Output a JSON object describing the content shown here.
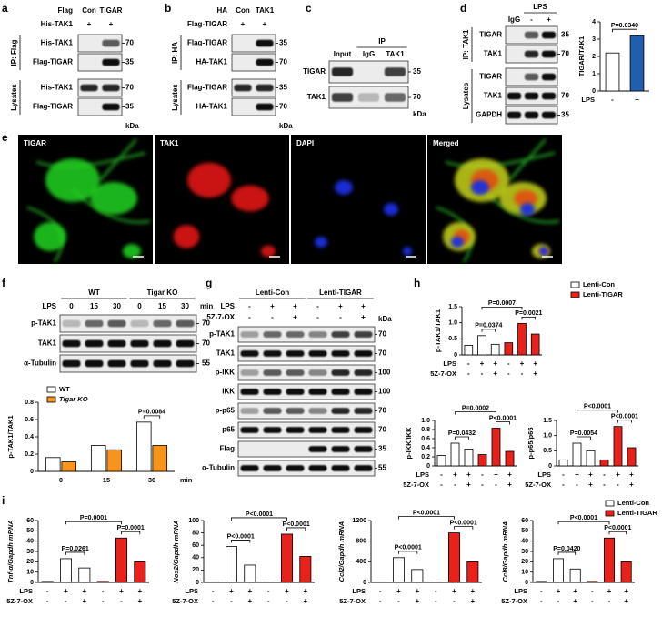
{
  "a": {
    "letter": "a",
    "top": [
      {
        "label": "Flag",
        "cells": [
          "Con",
          "TIGAR"
        ]
      },
      {
        "label": "His-TAK1",
        "cells": [
          "+",
          "+"
        ]
      }
    ],
    "groups": [
      {
        "label": "IP: Flag",
        "rows": [
          {
            "name": "His-TAK1",
            "kda": 70
          },
          {
            "name": "Flag-TIGAR",
            "kda": 35
          }
        ]
      },
      {
        "label": "Lysates",
        "rows": [
          {
            "name": "His-TAK1",
            "kda": 70
          },
          {
            "name": "Flag-TIGAR",
            "kda": 35
          }
        ]
      }
    ],
    "unit": "kDa"
  },
  "b": {
    "letter": "b",
    "top": [
      {
        "label": "HA",
        "cells": [
          "Con",
          "TAK1"
        ]
      },
      {
        "label": "Flag-TIGAR",
        "cells": [
          "+",
          "+"
        ]
      }
    ],
    "groups": [
      {
        "label": "IP: HA",
        "rows": [
          {
            "name": "Flag-TIGAR",
            "kda": 35
          },
          {
            "name": "HA-TAK1",
            "kda": 70
          }
        ]
      },
      {
        "label": "Lysates",
        "rows": [
          {
            "name": "Flag-TIGAR",
            "kda": 35
          },
          {
            "name": "HA-TAK1",
            "kda": 70
          }
        ]
      }
    ],
    "unit": "kDa"
  },
  "c": {
    "letter": "c",
    "spans": [
      {
        "text": "IP"
      }
    ],
    "top": [
      {
        "cells": [
          "Input",
          "IgG",
          "TAK1"
        ]
      }
    ],
    "groups": [
      {
        "rows": [
          {
            "name": "TIGAR",
            "kda": 35
          },
          {
            "name": "TAK1",
            "kda": 70
          }
        ]
      }
    ],
    "unit": "kDa"
  },
  "d": {
    "blot": {
      "letter": "d",
      "spans": [
        {
          "text": "LPS"
        }
      ],
      "top": [
        {
          "cells": [
            "IgG",
            "-",
            "+"
          ]
        }
      ],
      "groups": [
        {
          "label": "IP: TAK1",
          "rows": [
            {
              "name": "TIGAR",
              "kda": 35
            },
            {
              "name": "TAK1",
              "kda": 70
            }
          ]
        },
        {
          "label": "Lysates",
          "rows": [
            {
              "name": "TIGAR"
            },
            {
              "name": "TAK1",
              "kda": 70
            },
            {
              "name": "GAPDH",
              "kda": 35
            }
          ]
        }
      ]
    },
    "chart": {
      "type": "bar",
      "ylabel": "TIGAR/TAK1",
      "ylim": [
        0,
        4
      ],
      "yticks": [
        0,
        1,
        2,
        3,
        4
      ],
      "values": [
        2.2,
        3.2
      ],
      "colors": [
        "#ffffff",
        "#1f5fae"
      ],
      "conditions": [
        {
          "name": "LPS",
          "marks": [
            "-",
            "+"
          ]
        }
      ],
      "annotations": [
        "P=0.0340"
      ]
    }
  },
  "e": {
    "letter": "e",
    "images": [
      "TIGAR",
      "TAK1",
      "DAPI",
      "Merged"
    ]
  },
  "f": {
    "blot": {
      "letter": "f",
      "spans": [
        {
          "text": "WT"
        },
        {
          "text": "Tigar KO"
        }
      ],
      "top": [
        {
          "label": "LPS",
          "cells": [
            0,
            15,
            30,
            0,
            15,
            30
          ],
          "suffix": "min"
        }
      ],
      "groups": [
        {
          "rows": [
            {
              "name": "p-TAK1",
              "kda": 70
            },
            {
              "name": "TAK1",
              "kda": 70
            },
            {
              "name": "α-Tubulin",
              "kda": 55
            }
          ]
        }
      ]
    },
    "chart": {
      "type": "bar",
      "ylabel": "p-TAK1/TAK1",
      "ylim": [
        0,
        0.8
      ],
      "yticks": [
        0,
        0.2,
        0.4,
        0.6,
        0.8
      ],
      "categories": [
        0,
        15,
        30
      ],
      "xlabel": "min",
      "series": [
        {
          "name": "WT",
          "color": "#ffffff",
          "values": [
            0.16,
            0.3,
            0.57
          ]
        },
        {
          "name": "Tigar KO",
          "color": "#f7941d",
          "values": [
            0.11,
            0.25,
            0.3
          ]
        }
      ],
      "annotations": [
        "P=0.0084"
      ]
    }
  },
  "g": {
    "letter": "g",
    "spans": [
      {
        "text": "Lenti-Con"
      },
      {
        "text": "Lenti-TIGAR"
      }
    ],
    "top": [
      {
        "label": "LPS",
        "cells": [
          "-",
          "+",
          "+",
          "-",
          "+",
          "+"
        ]
      },
      {
        "label": "5Z-7-OX",
        "cells": [
          "-",
          "-",
          "+",
          "-",
          "-",
          "+"
        ]
      }
    ],
    "groups": [
      {
        "rows": [
          {
            "name": "p-TAK1",
            "kda": 70
          },
          {
            "name": "TAK1",
            "kda": 70
          },
          {
            "name": "p-IKK",
            "kda": 100
          },
          {
            "name": "IKK",
            "kda": 100
          },
          {
            "name": "p-p65",
            "kda": 70
          },
          {
            "name": "p65",
            "kda": 70
          },
          {
            "name": "Flag",
            "kda": 35
          },
          {
            "name": "α-Tubulin",
            "kda": 55
          }
        ]
      }
    ],
    "unit": "kDa"
  },
  "h": {
    "letter": "h",
    "charts": [
      {
        "type": "bar",
        "ylabel": "p-TAK1/TAK1",
        "ylim": [
          0,
          1.5
        ],
        "yticks": [
          0,
          0.5,
          {
            "value": 1,
            "label": "1.0"
          },
          1.5
        ],
        "series": [
          {
            "name": "Lenti-Con",
            "color": "#ffffff",
            "values": [
              0.3,
              0.6,
              0.33
            ]
          },
          {
            "name": "Lenti-TIGAR",
            "color": "#e8211b",
            "values": [
              0.38,
              0.98,
              0.65
            ]
          }
        ],
        "conditions": [
          {
            "name": "LPS",
            "marks": [
              "-",
              "+",
              "+",
              "-",
              "+",
              "+"
            ]
          },
          {
            "name": "5Z-7-OX",
            "marks": [
              "-",
              "-",
              "+",
              "-",
              "-",
              "+"
            ]
          }
        ],
        "annotations": [
          "P=0.0374",
          "P=0.0007",
          "P=0.0021"
        ]
      },
      {
        "type": "bar",
        "ylabel": "p-IKK/IKK",
        "ylim": [
          0,
          1
        ],
        "yticks": [
          0,
          0.2,
          0.4,
          0.6,
          0.8,
          {
            "value": 1,
            "label": "1.0"
          }
        ],
        "series": [
          {
            "name": "Lenti-Con",
            "color": "#ffffff",
            "values": [
              0.23,
              0.5,
              0.37
            ]
          },
          {
            "name": "Lenti-TIGAR",
            "color": "#e8211b",
            "values": [
              0.25,
              0.83,
              0.32
            ]
          }
        ],
        "conditions": [
          {
            "name": "LPS",
            "marks": [
              "-",
              "+",
              "+",
              "-",
              "+",
              "+"
            ]
          },
          {
            "name": "5Z-7-OX",
            "marks": [
              "-",
              "-",
              "+",
              "-",
              "-",
              "+"
            ]
          }
        ],
        "annotations": [
          "P=0.0432",
          "P=0.0002",
          "P<0.0001"
        ]
      },
      {
        "type": "bar",
        "ylabel": "p-p65/p65",
        "ylim": [
          0,
          1.5
        ],
        "yticks": [
          0,
          0.5,
          {
            "value": 1,
            "label": "1.0"
          },
          1.5
        ],
        "series": [
          {
            "name": "Lenti-Con",
            "color": "#ffffff",
            "values": [
              0.2,
              0.75,
              0.5
            ]
          },
          {
            "name": "Lenti-TIGAR",
            "color": "#e8211b",
            "values": [
              0.2,
              1.3,
              0.6
            ]
          }
        ],
        "conditions": [
          {
            "name": "LPS",
            "marks": [
              "-",
              "+",
              "+",
              "-",
              "+",
              "+"
            ]
          },
          {
            "name": "5Z-7-OX",
            "marks": [
              "-",
              "-",
              "+",
              "-",
              "-",
              "+"
            ]
          }
        ],
        "annotations": [
          "P=0.0054",
          "P<0.0001",
          "P<0.0001"
        ]
      }
    ]
  },
  "i": {
    "letter": "i",
    "charts": [
      {
        "type": "bar",
        "ylabel": "Tnf-α/Gapdh mRNA",
        "ylim": [
          0,
          60
        ],
        "yticks": [
          0,
          10,
          20,
          30,
          40,
          50,
          60
        ],
        "series": [
          {
            "name": "Lenti-Con",
            "color": "#ffffff",
            "values": [
              1,
              23,
              14
            ]
          },
          {
            "name": "Lenti-TIGAR",
            "color": "#e8211b",
            "values": [
              1,
              43,
              20
            ]
          }
        ],
        "conditions": [
          {
            "name": "LPS",
            "marks": [
              "-",
              "+",
              "+",
              "-",
              "+",
              "+"
            ]
          },
          {
            "name": "5Z-7-OX",
            "marks": [
              "-",
              "-",
              "+",
              "-",
              "-",
              "+"
            ]
          }
        ],
        "annotations": [
          "P=0.0261",
          "P=0.0001",
          "P=0.0001"
        ]
      },
      {
        "type": "bar",
        "ylabel": "Nos2/Gapdh mRNA",
        "ylim": [
          0,
          100
        ],
        "yticks": [
          0,
          20,
          40,
          60,
          80,
          100
        ],
        "series": [
          {
            "name": "Lenti-Con",
            "color": "#ffffff",
            "values": [
              0.5,
              58,
              28
            ]
          },
          {
            "name": "Lenti-TIGAR",
            "color": "#e8211b",
            "values": [
              0.5,
              78,
              42
            ]
          }
        ],
        "conditions": [
          {
            "name": "LPS",
            "marks": [
              "-",
              "+",
              "+",
              "-",
              "+",
              "+"
            ]
          },
          {
            "name": "5Z-7-OX",
            "marks": [
              "-",
              "-",
              "+",
              "-",
              "-",
              "+"
            ]
          }
        ],
        "annotations": [
          "P<0.0001",
          "P<0.0001",
          "P<0.0001"
        ]
      },
      {
        "type": "bar",
        "ylabel": "Ccl2/Gapdh mRNA",
        "ylim": [
          0,
          1200
        ],
        "yticks": [
          0,
          400,
          800,
          1200
        ],
        "series": [
          {
            "name": "Lenti-Con",
            "color": "#ffffff",
            "values": [
              5,
              480,
              250
            ]
          },
          {
            "name": "Lenti-TIGAR",
            "color": "#e8211b",
            "values": [
              5,
              960,
              400
            ]
          }
        ],
        "conditions": [
          {
            "name": "LPS",
            "marks": [
              "-",
              "+",
              "+",
              "-",
              "+",
              "+"
            ]
          },
          {
            "name": "5Z-7-OX",
            "marks": [
              "-",
              "-",
              "+",
              "-",
              "-",
              "+"
            ]
          }
        ],
        "annotations": [
          "P<0.0001",
          "P<0.0001",
          "P<0.0001"
        ]
      },
      {
        "type": "bar",
        "ylabel": "Ccl8/Gapdh mRNA",
        "ylim": [
          0,
          60
        ],
        "yticks": [
          0,
          10,
          20,
          30,
          40,
          50,
          60
        ],
        "series": [
          {
            "name": "Lenti-Con",
            "color": "#ffffff",
            "values": [
              1,
              23,
              13
            ]
          },
          {
            "name": "Lenti-TIGAR",
            "color": "#e8211b",
            "values": [
              1,
              43,
              20
            ]
          }
        ],
        "conditions": [
          {
            "name": "LPS",
            "marks": [
              "-",
              "+",
              "+",
              "-",
              "+",
              "+"
            ]
          },
          {
            "name": "5Z-7-OX",
            "marks": [
              "-",
              "-",
              "+",
              "-",
              "-",
              "+"
            ]
          }
        ],
        "annotations": [
          "P=0.0420",
          "P<0.0001",
          "P<0.0001"
        ]
      }
    ]
  }
}
